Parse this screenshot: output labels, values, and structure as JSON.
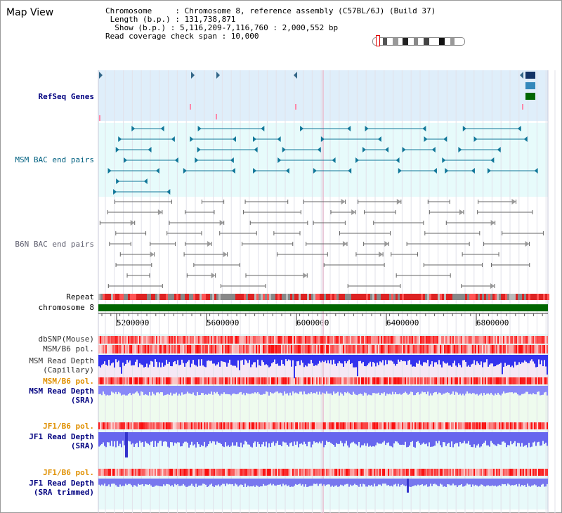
{
  "title": "Map View",
  "info": {
    "chromosome_line": "Chromosome     : Chromosome 8, reference assembly (C57BL/6J) (Build 37)",
    "length_line": " Length (b.p.) : 131,738,871",
    "show_line": "  Show (b.p.) : 5,116,209-7,116,760 : 2,000,552 bp",
    "coverage_line": "Read coverage check span : 10,000"
  },
  "tracks": {
    "refseq": "RefSeq Genes",
    "msm_bac": "MSM BAC end pairs",
    "b6n_bac": "B6N BAC end pairs",
    "repeat": "Repeat",
    "chromosome": "chromosome 8",
    "dbsnp": "dbSNP(Mouse)",
    "msm_b6_pol": "MSM/B6 pol.",
    "msm_read_depth_cap_1": "MSM Read Depth",
    "msm_read_depth_cap_2": "(Capillary)",
    "msm_b6_pol_2": "MSM/B6 pol.",
    "msm_read_depth_sra_1": "MSM Read Depth",
    "msm_read_depth_sra_2": "(SRA)",
    "jf1_b6_pol": "JF1/B6 pol.",
    "jf1_read_depth_sra_1": "JF1 Read Depth",
    "jf1_read_depth_sra_2": "(SRA)",
    "jf1_b6_pol_2": "JF1/B6 pol.",
    "jf1_read_depth_trim_1": "JF1 Read Depth",
    "jf1_read_depth_trim_2": "(SRA trimmed)"
  },
  "axis": {
    "ticks": [
      "5200000",
      "5600000",
      "6000000",
      "6400000",
      "6800000"
    ]
  },
  "colors": {
    "refseq_bg": "#dfeefa",
    "msm_bg": "#e7fbfb",
    "b6n_bg": "#ffffff",
    "navy_label": "#000080",
    "teal_label": "#006080",
    "gray_label": "#606070",
    "orange_label": "#e09000",
    "chromosome_green": "#006600",
    "depth_blue": "#3333ee",
    "depth_light_blue": "#8888f8"
  }
}
